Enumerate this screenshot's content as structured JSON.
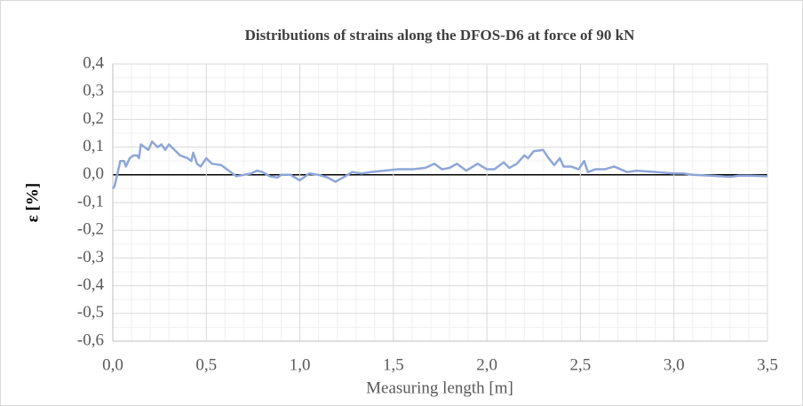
{
  "chart_data": {
    "type": "line",
    "title": "Distributions of strains along the DFOS-D6 at force of 90 kN",
    "xlabel": "Measuring length [m]",
    "ylabel": "ε [%]",
    "xlim": [
      0,
      3.5
    ],
    "ylim": [
      -0.6,
      0.4
    ],
    "xticks": [
      {
        "value": 0,
        "label": "0,0"
      },
      {
        "value": 0.5,
        "label": "0,5"
      },
      {
        "value": 1,
        "label": "1,0"
      },
      {
        "value": 1.5,
        "label": "1,5"
      },
      {
        "value": 2,
        "label": "2,0"
      },
      {
        "value": 2.5,
        "label": "2,5"
      },
      {
        "value": 3,
        "label": "3,0"
      },
      {
        "value": 3.5,
        "label": "3,5"
      }
    ],
    "yticks": [
      {
        "value": 0.4,
        "label": "0,4"
      },
      {
        "value": 0.3,
        "label": "0,3"
      },
      {
        "value": 0.2,
        "label": "0,2"
      },
      {
        "value": 0.1,
        "label": "0,1"
      },
      {
        "value": 0,
        "label": "0,0"
      },
      {
        "value": -0.1,
        "label": "-0,1"
      },
      {
        "value": -0.2,
        "label": "-0,2"
      },
      {
        "value": -0.3,
        "label": "-0,3"
      },
      {
        "value": -0.4,
        "label": "-0,4"
      },
      {
        "value": -0.5,
        "label": "-0,5"
      },
      {
        "value": -0.6,
        "label": "-0,6"
      }
    ],
    "minor_xticks": [
      0.1,
      0.2,
      0.3,
      0.4,
      0.6,
      0.7,
      0.8,
      0.9,
      1.1,
      1.2,
      1.3,
      1.4,
      1.6,
      1.7,
      1.8,
      1.9,
      2.1,
      2.2,
      2.3,
      2.4,
      2.6,
      2.7,
      2.8,
      2.9,
      3.1,
      3.2,
      3.3,
      3.4
    ],
    "minor_yticks": [
      0.35,
      0.25,
      0.15,
      0.05,
      -0.05,
      -0.15,
      -0.25,
      -0.35,
      -0.45,
      -0.55
    ],
    "grid": true,
    "x": [
      0.0,
      0.01,
      0.03,
      0.04,
      0.06,
      0.07,
      0.09,
      0.11,
      0.13,
      0.14,
      0.15,
      0.17,
      0.19,
      0.21,
      0.24,
      0.26,
      0.28,
      0.3,
      0.33,
      0.36,
      0.4,
      0.42,
      0.43,
      0.45,
      0.47,
      0.5,
      0.53,
      0.58,
      0.63,
      0.66,
      0.7,
      0.74,
      0.77,
      0.8,
      0.84,
      0.88,
      0.9,
      0.95,
      1.0,
      1.02,
      1.05,
      1.1,
      1.15,
      1.19,
      1.23,
      1.28,
      1.33,
      1.38,
      1.45,
      1.52,
      1.6,
      1.67,
      1.72,
      1.76,
      1.8,
      1.84,
      1.89,
      1.95,
      2.0,
      2.04,
      2.09,
      2.12,
      2.16,
      2.2,
      2.22,
      2.25,
      2.3,
      2.33,
      2.36,
      2.39,
      2.41,
      2.45,
      2.49,
      2.52,
      2.54,
      2.58,
      2.63,
      2.68,
      2.75,
      2.8,
      2.9,
      3.0,
      3.05,
      3.1,
      3.2,
      3.3,
      3.35,
      3.4,
      3.5
    ],
    "series": [
      {
        "name": "DFOS-D6",
        "color": "#8ea6d8",
        "values": [
          -0.05,
          -0.04,
          0.02,
          0.05,
          0.05,
          0.03,
          0.06,
          0.07,
          0.07,
          0.06,
          0.11,
          0.1,
          0.09,
          0.12,
          0.1,
          0.11,
          0.09,
          0.11,
          0.09,
          0.07,
          0.06,
          0.05,
          0.08,
          0.04,
          0.03,
          0.06,
          0.04,
          0.035,
          0.01,
          -0.005,
          0.0,
          0.005,
          0.015,
          0.01,
          -0.005,
          -0.01,
          0.0,
          0.0,
          -0.02,
          -0.01,
          0.005,
          0.0,
          -0.01,
          -0.025,
          -0.01,
          0.01,
          0.005,
          0.01,
          0.015,
          0.02,
          0.02,
          0.025,
          0.04,
          0.02,
          0.025,
          0.04,
          0.015,
          0.04,
          0.02,
          0.02,
          0.045,
          0.025,
          0.04,
          0.07,
          0.06,
          0.085,
          0.09,
          0.06,
          0.035,
          0.06,
          0.03,
          0.03,
          0.02,
          0.05,
          0.01,
          0.02,
          0.02,
          0.03,
          0.01,
          0.015,
          0.01,
          0.005,
          0.005,
          0.0,
          -0.003,
          -0.007,
          -0.003,
          -0.003,
          -0.005
        ]
      }
    ]
  }
}
